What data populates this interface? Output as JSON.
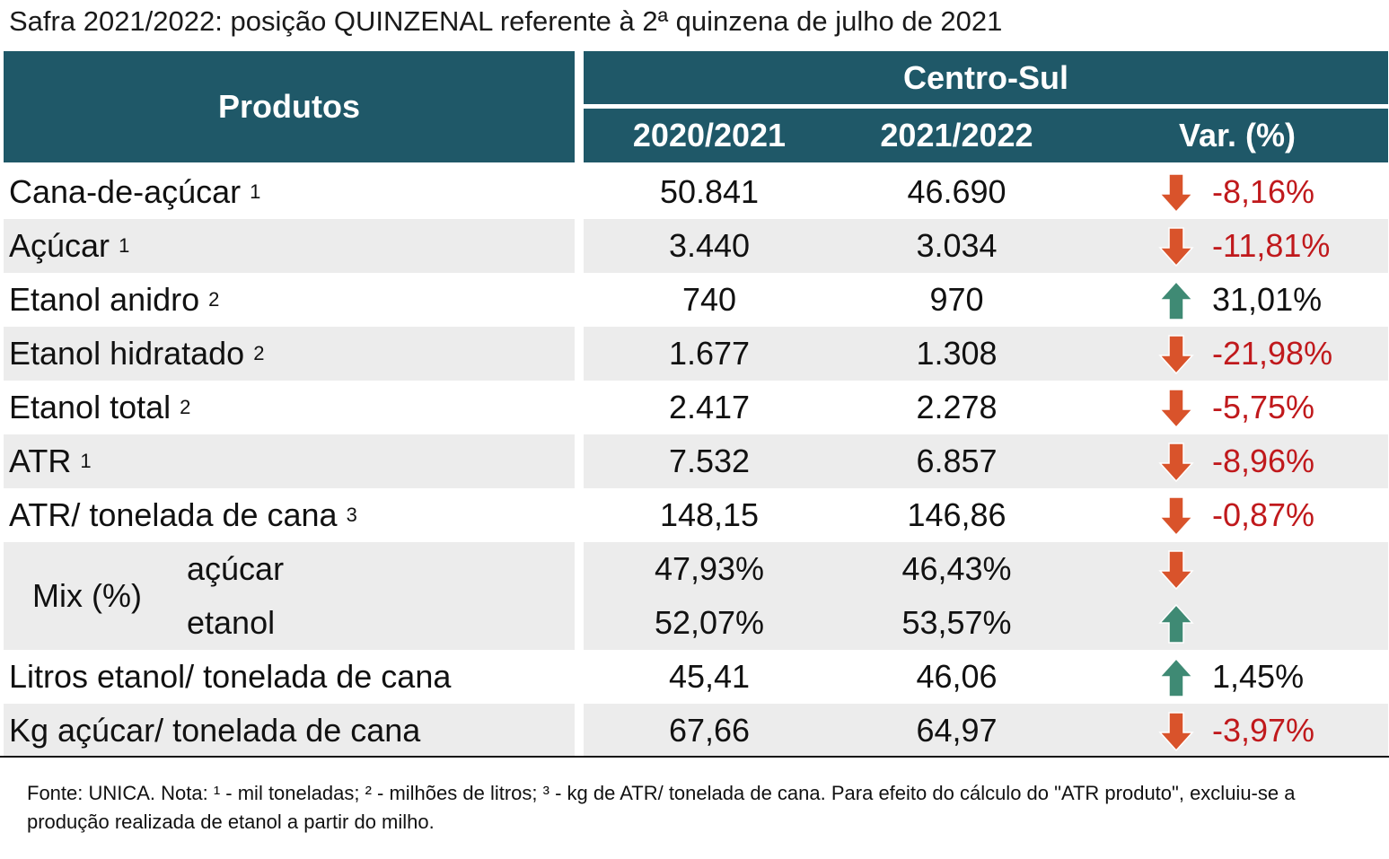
{
  "title": "Safra 2021/2022: posição QUINZENAL referente à 2ª quinzena de julho de 2021",
  "header": {
    "produtos": "Produtos",
    "region": "Centro-Sul",
    "col1": "2020/2021",
    "col2": "2021/2022",
    "col3": "Var. (%)"
  },
  "rows": [
    {
      "label": "Cana-de-açúcar",
      "sup": "1",
      "v1": "50.841",
      "v2": "46.690",
      "trend": "down",
      "var": "-8,16%"
    },
    {
      "label": "Açúcar",
      "sup": "1",
      "v1": "3.440",
      "v2": "3.034",
      "trend": "down",
      "var": "-11,81%"
    },
    {
      "label": "Etanol anidro",
      "sup": "2",
      "v1": "740",
      "v2": "970",
      "trend": "up",
      "var": "31,01%"
    },
    {
      "label": "Etanol hidratado",
      "sup": "2",
      "v1": "1.677",
      "v2": "1.308",
      "trend": "down",
      "var": "-21,98%"
    },
    {
      "label": "Etanol total",
      "sup": "2",
      "v1": "2.417",
      "v2": "2.278",
      "trend": "down",
      "var": "-5,75%"
    },
    {
      "label": "ATR",
      "sup": "1",
      "v1": "7.532",
      "v2": "6.857",
      "trend": "down",
      "var": "-8,96%"
    },
    {
      "label": "ATR/ tonelada de cana",
      "sup": "3",
      "v1": "148,15",
      "v2": "146,86",
      "trend": "down",
      "var": "-0,87%"
    }
  ],
  "mix": {
    "label": "Mix (%)",
    "acucar": {
      "label": "açúcar",
      "v1": "47,93%",
      "v2": "46,43%",
      "trend": "down"
    },
    "etanol": {
      "label": "etanol",
      "v1": "52,07%",
      "v2": "53,57%",
      "trend": "up"
    }
  },
  "rows2": [
    {
      "label": "Litros etanol/ tonelada de cana",
      "v1": "45,41",
      "v2": "46,06",
      "trend": "up",
      "var": "1,45%"
    },
    {
      "label": "Kg açúcar/ tonelada de cana",
      "v1": "67,66",
      "v2": "64,97",
      "trend": "down",
      "var": "-3,97%"
    }
  ],
  "note": "Fonte: UNICA. Nota: ¹ - mil toneladas; ² - milhões de litros; ³ - kg de ATR/ tonelada de cana. Para efeito do cálculo do \"ATR produto\", excluiu-se a produção realizada de etanol a partir do milho.",
  "colors": {
    "header": "#1f5868",
    "down_arrow": "#d9532b",
    "up_arrow": "#3f8a74",
    "negative_text": "#c0191c",
    "stripe": "#ececec"
  }
}
